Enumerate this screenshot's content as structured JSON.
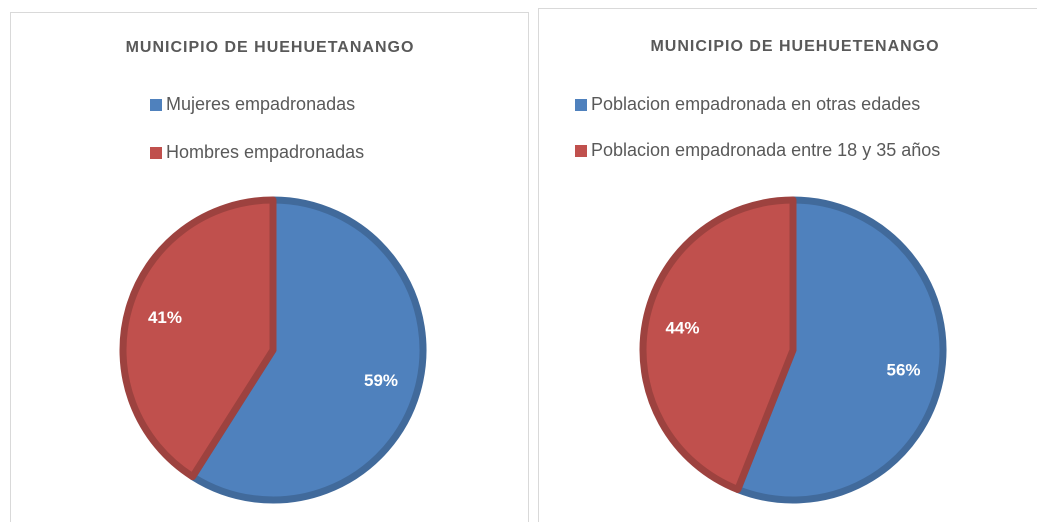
{
  "chart_data": [
    {
      "type": "pie",
      "title": "MUNICIPIO DE HUEHUETANANGO",
      "categories": [
        "Mujeres empadronadas",
        "Hombres empadronadas"
      ],
      "values": [
        59,
        41
      ],
      "value_labels": [
        "59%",
        "41%"
      ],
      "colors": [
        "#4f81bd",
        "#c0504d"
      ],
      "legend": "top"
    },
    {
      "type": "pie",
      "title": "MUNICIPIO DE HUEHUETENANGO",
      "categories": [
        "Poblacion empadronada en otras edades",
        "Poblacion empadronada entre 18 y 35 años"
      ],
      "values": [
        56,
        44
      ],
      "value_labels": [
        "56%",
        "44%"
      ],
      "colors": [
        "#4f81bd",
        "#c0504d"
      ],
      "legend": "top"
    }
  ]
}
